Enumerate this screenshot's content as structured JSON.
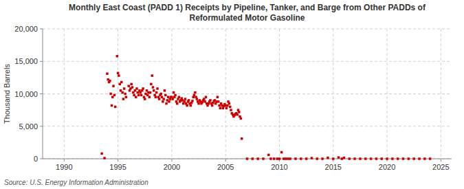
{
  "chart_data": {
    "type": "scatter",
    "title": "Monthly East Coast (PADD 1) Receipts by Pipeline, Tanker, and Barge from Other PADDs of\nReformulated Motor Gasoline",
    "ylabel": "Thousand Barrels",
    "source": "Source: U.S. Energy Information Administration",
    "color": "#cc0000",
    "marker": "square",
    "grid": true,
    "xlim": [
      1988,
      2026
    ],
    "ylim": [
      0,
      20000
    ],
    "xticks": [
      1990,
      1995,
      2000,
      2005,
      2010,
      2015,
      2020,
      2025
    ],
    "yticks": [
      0,
      {
        "value": 5000,
        "label": "5,000"
      },
      {
        "value": 10000,
        "label": "10,000"
      },
      {
        "value": 15000,
        "label": "15,000"
      },
      {
        "value": 20000,
        "label": "20,000"
      }
    ],
    "x": [
      1993.5,
      1993.75,
      1994.0,
      1994.08,
      1994.17,
      1994.25,
      1994.33,
      1994.42,
      1994.5,
      1994.58,
      1994.67,
      1994.75,
      1994.92,
      1995.0,
      1995.08,
      1995.17,
      1995.25,
      1995.33,
      1995.42,
      1995.5,
      1995.58,
      1995.67,
      1995.75,
      1996.0,
      1996.08,
      1996.17,
      1996.25,
      1996.33,
      1996.42,
      1996.5,
      1996.58,
      1996.67,
      1996.75,
      1996.83,
      1996.92,
      1997.0,
      1997.08,
      1997.17,
      1997.25,
      1997.33,
      1997.42,
      1997.5,
      1997.58,
      1997.67,
      1997.75,
      1997.83,
      1997.92,
      1998.0,
      1998.08,
      1998.17,
      1998.25,
      1998.33,
      1998.42,
      1998.5,
      1998.58,
      1998.67,
      1998.75,
      1998.83,
      1998.92,
      1999.0,
      1999.08,
      1999.17,
      1999.25,
      1999.33,
      1999.42,
      1999.5,
      1999.58,
      1999.67,
      1999.75,
      1999.83,
      1999.92,
      2000.0,
      2000.08,
      2000.17,
      2000.25,
      2000.33,
      2000.42,
      2000.5,
      2000.58,
      2000.67,
      2000.75,
      2000.83,
      2000.92,
      2001.0,
      2001.08,
      2001.17,
      2001.25,
      2001.33,
      2001.42,
      2001.5,
      2001.58,
      2001.67,
      2001.75,
      2001.83,
      2001.92,
      2002.0,
      2002.08,
      2002.17,
      2002.25,
      2002.33,
      2002.42,
      2002.5,
      2002.58,
      2002.67,
      2002.75,
      2002.83,
      2002.92,
      2003.0,
      2003.08,
      2003.17,
      2003.25,
      2003.33,
      2003.42,
      2003.5,
      2003.58,
      2003.67,
      2003.75,
      2003.83,
      2003.92,
      2004.0,
      2004.08,
      2004.17,
      2004.25,
      2004.33,
      2004.42,
      2004.5,
      2004.58,
      2004.67,
      2004.75,
      2004.83,
      2004.92,
      2005.0,
      2005.08,
      2005.17,
      2005.25,
      2005.33,
      2005.42,
      2005.5,
      2005.58,
      2005.67,
      2005.75,
      2005.83,
      2005.92,
      2006.0,
      2006.08,
      2006.17,
      2006.25,
      2006.33,
      2006.42,
      2006.5,
      2007.0,
      2007.5,
      2008.0,
      2008.5,
      2009.0,
      2009.2,
      2009.5,
      2009.8,
      2010.0,
      2010.2,
      2010.4,
      2010.6,
      2010.8,
      2011.0,
      2011.5,
      2012.0,
      2012.5,
      2013.0,
      2013.5,
      2014.0,
      2014.5,
      2015.0,
      2015.5,
      2015.8,
      2016.0,
      2016.5,
      2017.0,
      2017.5,
      2018.0,
      2018.5,
      2019.0,
      2019.5,
      2020.0,
      2020.5,
      2021.0,
      2021.5,
      2022.0,
      2022.5,
      2023.0,
      2023.5,
      2024.0
    ],
    "values": [
      800,
      100,
      13100,
      12200,
      11800,
      12000,
      10000,
      8200,
      9500,
      11200,
      9800,
      8000,
      15800,
      13200,
      12800,
      11500,
      10500,
      11800,
      10200,
      9200,
      10800,
      10000,
      9500,
      11200,
      10500,
      10800,
      11500,
      11000,
      10200,
      9800,
      10500,
      9500,
      10800,
      10200,
      9800,
      10500,
      10200,
      9800,
      10500,
      10800,
      9500,
      9200,
      10000,
      10500,
      9800,
      10200,
      9500,
      10200,
      11500,
      12800,
      11000,
      10500,
      9800,
      9500,
      10200,
      10800,
      9500,
      9200,
      9800,
      10000,
      9500,
      8800,
      9200,
      10500,
      9800,
      8500,
      9000,
      9500,
      8800,
      9200,
      9500,
      9500,
      9200,
      10200,
      9500,
      9800,
      8800,
      8500,
      9200,
      9500,
      8800,
      9000,
      9300,
      9000,
      8500,
      8800,
      9200,
      8500,
      8200,
      8800,
      9000,
      8500,
      8200,
      8600,
      8900,
      9500,
      9800,
      10200,
      9500,
      9200,
      8800,
      8500,
      9000,
      8800,
      8500,
      8700,
      9000,
      9200,
      8800,
      9500,
      8500,
      8200,
      8500,
      8800,
      9000,
      8500,
      8200,
      8600,
      8900,
      9000,
      8500,
      8800,
      9500,
      8800,
      8200,
      7800,
      8500,
      8200,
      7800,
      8100,
      8400,
      8200,
      7800,
      8200,
      8800,
      8500,
      8000,
      7500,
      7000,
      6800,
      6500,
      6700,
      6900,
      7000,
      6800,
      7500,
      7200,
      6500,
      6200,
      3100,
      0,
      0,
      0,
      0,
      600,
      0,
      0,
      0,
      0,
      1000,
      0,
      0,
      0,
      0,
      0,
      0,
      0,
      100,
      0,
      0,
      150,
      0,
      200,
      0,
      150,
      0,
      0,
      0,
      0,
      0,
      0,
      0,
      0,
      0,
      0,
      0,
      0,
      0,
      0,
      0,
      0
    ]
  }
}
